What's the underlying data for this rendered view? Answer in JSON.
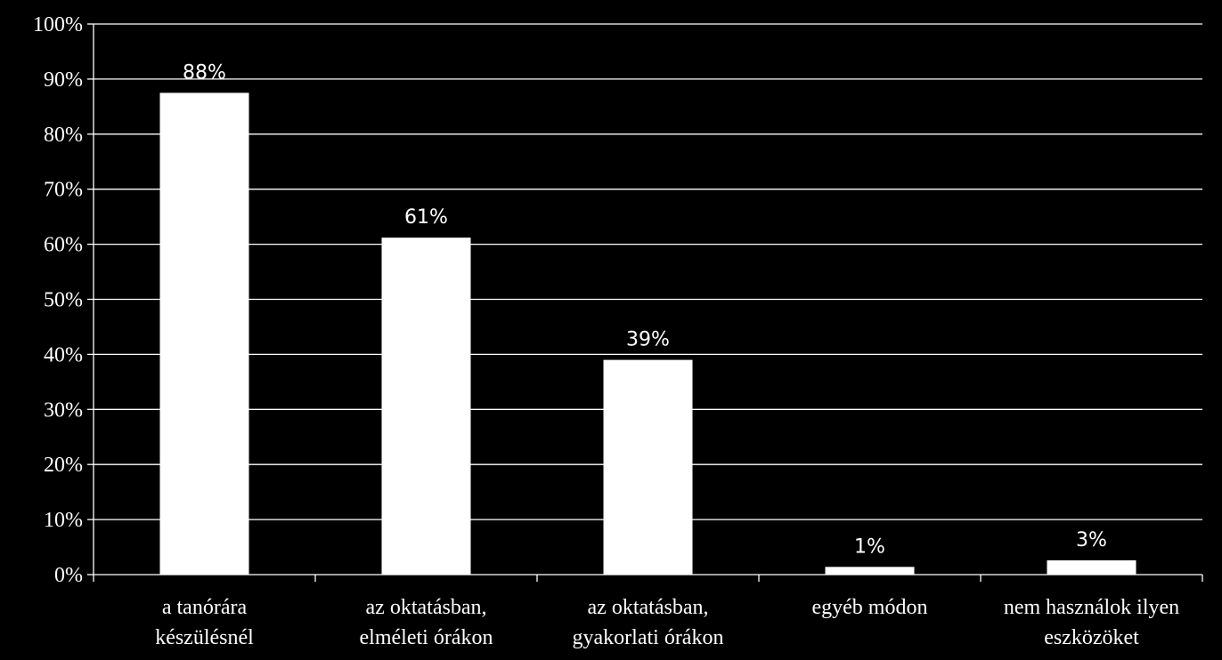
{
  "chart_data": {
    "type": "bar",
    "categories": [
      [
        "a tanórára",
        "készülésnél"
      ],
      [
        "az oktatásban,",
        "elméleti órákon"
      ],
      [
        "az oktatásban,",
        "gyakorlati órákon"
      ],
      [
        "egyéb módon"
      ],
      [
        "nem használok ilyen",
        "eszközöket"
      ]
    ],
    "values": [
      87.5,
      61.2,
      39.0,
      1.4,
      2.6
    ],
    "data_labels": [
      "88%",
      "61%",
      "39%",
      "1%",
      "3%"
    ],
    "ylim": [
      0,
      100
    ],
    "yticks": [
      0,
      10,
      20,
      30,
      40,
      50,
      60,
      70,
      80,
      90,
      100
    ],
    "ytick_labels": [
      "0%",
      "10%",
      "20%",
      "30%",
      "40%",
      "50%",
      "60%",
      "70%",
      "80%",
      "90%",
      "100%"
    ],
    "grid": true,
    "legend": "none",
    "colors": {
      "background": "#000000",
      "bar": "#ffffff",
      "grid": "#ffffff",
      "text": "#ffffff"
    }
  }
}
